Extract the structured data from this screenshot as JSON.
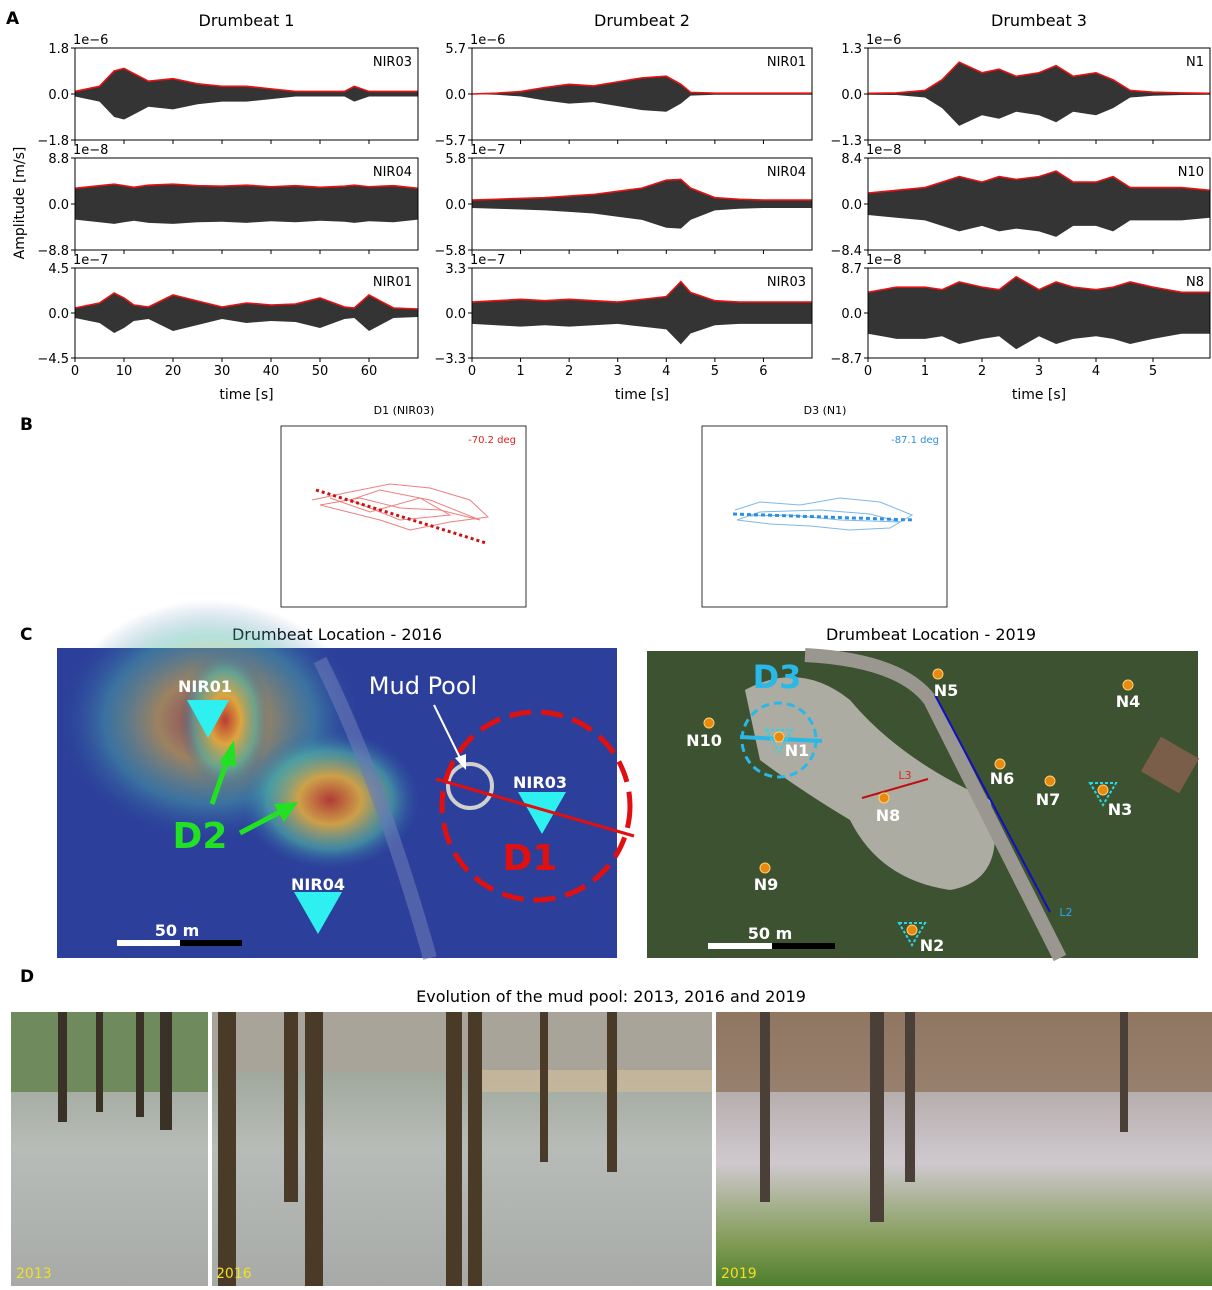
{
  "panel_labels": [
    "A",
    "B",
    "C",
    "D"
  ],
  "panel_a": {
    "ylabel": "Amplitude [m/s]",
    "xlabel": "time [s]",
    "columns": [
      {
        "title": "Drumbeat 1",
        "xlim": [
          0,
          70
        ],
        "xticks": [
          0,
          10,
          20,
          30,
          40,
          50,
          60
        ],
        "x": [
          0,
          5,
          8,
          10,
          12,
          15,
          20,
          25,
          30,
          35,
          40,
          45,
          50,
          55,
          57,
          60,
          65,
          70
        ],
        "rows": [
          {
            "station": "NIR03",
            "exponent": "1e−6",
            "ylim": [
              -1.8,
              1.8
            ],
            "yticks": [
              {
                "value": -1.8,
                "label": "−1.8"
              },
              {
                "value": 0,
                "label": "0.0"
              },
              {
                "value": 1.8,
                "label": "1.8"
              }
            ],
            "envelope": [
              0.1,
              0.3,
              0.9,
              1.0,
              0.8,
              0.5,
              0.6,
              0.4,
              0.3,
              0.3,
              0.2,
              0.1,
              0.1,
              0.1,
              0.3,
              0.1,
              0.1,
              0.1
            ]
          },
          {
            "station": "NIR04",
            "exponent": "1e−8",
            "ylim": [
              -8.8,
              8.8
            ],
            "yticks": [
              {
                "value": -8.8,
                "label": "−8.8"
              },
              {
                "value": 0,
                "label": "0.0"
              },
              {
                "value": 8.8,
                "label": "8.8"
              }
            ],
            "envelope": [
              3.0,
              3.5,
              3.8,
              3.5,
              3.2,
              3.6,
              3.8,
              3.5,
              3.4,
              3.6,
              3.3,
              3.5,
              3.2,
              3.4,
              3.6,
              3.3,
              3.5,
              3.0
            ]
          },
          {
            "station": "NIR01",
            "exponent": "1e−7",
            "ylim": [
              -4.5,
              4.5
            ],
            "yticks": [
              {
                "value": -4.5,
                "label": "−4.5"
              },
              {
                "value": 0,
                "label": "0.0"
              },
              {
                "value": 4.5,
                "label": "4.5"
              }
            ],
            "envelope": [
              0.5,
              1.0,
              2.0,
              1.5,
              0.8,
              0.6,
              1.8,
              1.2,
              0.6,
              1.0,
              0.8,
              0.9,
              1.5,
              0.6,
              0.5,
              1.8,
              0.5,
              0.4
            ]
          }
        ]
      },
      {
        "title": "Drumbeat 2",
        "xlim": [
          0,
          7
        ],
        "xticks": [
          0,
          1,
          2,
          3,
          4,
          5,
          6
        ],
        "x": [
          0,
          0.5,
          1,
          1.5,
          2,
          2.5,
          3,
          3.5,
          4,
          4.3,
          4.5,
          5,
          5.5,
          6,
          6.5,
          7
        ],
        "rows": [
          {
            "station": "NIR01",
            "exponent": "1e−6",
            "ylim": [
              -5.7,
              5.7
            ],
            "yticks": [
              {
                "value": -5.7,
                "label": "−5.7"
              },
              {
                "value": 0,
                "label": "0.0"
              },
              {
                "value": 5.7,
                "label": "5.7"
              }
            ],
            "envelope": [
              0,
              0.1,
              0.3,
              0.8,
              1.2,
              1.0,
              1.5,
              2.0,
              2.2,
              1.2,
              0.2,
              0.1,
              0.1,
              0.1,
              0.1,
              0.1
            ]
          },
          {
            "station": "NIR04",
            "exponent": "1e−7",
            "ylim": [
              -5.8,
              5.8
            ],
            "yticks": [
              {
                "value": -5.8,
                "label": "−5.8"
              },
              {
                "value": 0,
                "label": "0.0"
              },
              {
                "value": 5.8,
                "label": "5.8"
              }
            ],
            "envelope": [
              0.5,
              0.6,
              0.7,
              0.8,
              1.0,
              1.2,
              1.6,
              2.0,
              3.0,
              3.1,
              2.0,
              0.8,
              0.6,
              0.5,
              0.5,
              0.5
            ]
          },
          {
            "station": "NIR03",
            "exponent": "1e−7",
            "ylim": [
              -3.3,
              3.3
            ],
            "yticks": [
              {
                "value": -3.3,
                "label": "−3.3"
              },
              {
                "value": 0,
                "label": "0.0"
              },
              {
                "value": 3.3,
                "label": "3.3"
              }
            ],
            "envelope": [
              0.8,
              0.9,
              1.0,
              0.9,
              1.0,
              0.9,
              0.8,
              1.0,
              1.2,
              2.3,
              1.5,
              0.9,
              0.8,
              0.8,
              0.8,
              0.8
            ]
          }
        ]
      },
      {
        "title": "Drumbeat 3",
        "xlim": [
          0,
          6
        ],
        "xticks": [
          0,
          1,
          2,
          3,
          4,
          5
        ],
        "x": [
          0,
          0.5,
          1,
          1.3,
          1.6,
          2,
          2.3,
          2.6,
          3,
          3.3,
          3.6,
          4,
          4.3,
          4.6,
          5,
          5.5,
          6
        ],
        "rows": [
          {
            "station": "N1",
            "exponent": "1e−6",
            "ylim": [
              -1.3,
              1.3
            ],
            "yticks": [
              {
                "value": -1.3,
                "label": "−1.3"
              },
              {
                "value": 0,
                "label": "0.0"
              },
              {
                "value": 1.3,
                "label": "1.3"
              }
            ],
            "envelope": [
              0.02,
              0.03,
              0.1,
              0.4,
              0.9,
              0.6,
              0.7,
              0.5,
              0.6,
              0.8,
              0.5,
              0.6,
              0.4,
              0.1,
              0.05,
              0.03,
              0.02
            ]
          },
          {
            "station": "N10",
            "exponent": "1e−8",
            "ylim": [
              -8.4,
              8.4
            ],
            "yticks": [
              {
                "value": -8.4,
                "label": "−8.4"
              },
              {
                "value": 0,
                "label": "0.0"
              },
              {
                "value": 8.4,
                "label": "8.4"
              }
            ],
            "envelope": [
              2,
              2.5,
              3,
              4,
              5,
              4,
              5,
              4.5,
              5,
              6,
              4,
              4,
              5,
              3,
              3,
              3,
              2.5
            ]
          },
          {
            "station": "N8",
            "exponent": "1e−8",
            "ylim": [
              -8.7,
              8.7
            ],
            "yticks": [
              {
                "value": -8.7,
                "label": "−8.7"
              },
              {
                "value": 0,
                "label": "0.0"
              },
              {
                "value": 8.7,
                "label": "8.7"
              }
            ],
            "envelope": [
              4,
              5,
              5,
              4.5,
              6,
              5,
              4.5,
              7,
              4.5,
              6,
              5,
              4.5,
              5,
              6,
              5,
              4,
              4
            ]
          }
        ]
      }
    ]
  },
  "panel_b": {
    "plots": [
      {
        "title": "D1 (NIR03)",
        "annotation": "-70.2 deg"
      },
      {
        "title": "D3 (N1)",
        "annotation": "-87.1 deg"
      }
    ]
  },
  "panel_c": {
    "maps": [
      {
        "title": "Drumbeat Location - 2016",
        "labels": [
          "NIR01",
          "NIR03",
          "NIR04",
          "Mud Pool",
          "D1",
          "D2",
          "50 m"
        ]
      },
      {
        "title": "Drumbeat Location - 2019",
        "labels": [
          "D3",
          "N1",
          "N2",
          "N3",
          "N4",
          "N5",
          "N6",
          "N7",
          "N8",
          "N9",
          "N10",
          "L2",
          "L3",
          "50 m"
        ]
      }
    ]
  },
  "panel_d": {
    "title": "Evolution of the mud pool: 2013, 2016 and 2019",
    "photos": [
      "2013",
      "2016",
      "2019"
    ]
  }
}
